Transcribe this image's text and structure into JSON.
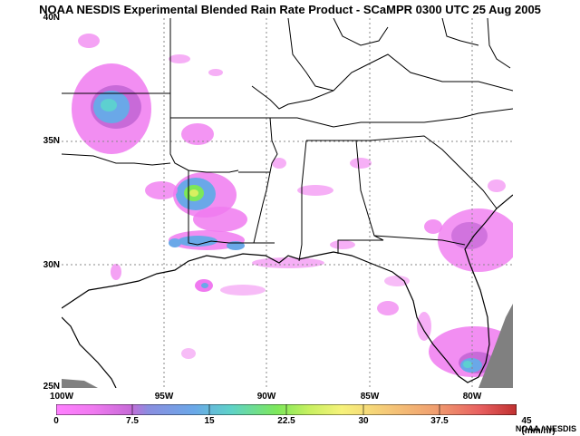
{
  "title": "NOAA NESDIS Experimental Blended Rain Rate Product - SCaMPR 0300 UTC  25 Aug 2005",
  "lat_labels": [
    "40N",
    "35N",
    "30N",
    "25N"
  ],
  "lon_labels": [
    "100W",
    "95W",
    "90W",
    "85W",
    "80W"
  ],
  "colorbar": {
    "labels": [
      "0",
      "7.5",
      "15",
      "22.5",
      "30",
      "37.5",
      "45 (mm/hr)"
    ],
    "min": 0,
    "max": 45,
    "unit": "mm/hr"
  },
  "credit": "NOAA / NESDIS",
  "map_extent": {
    "lon_min": -100,
    "lon_max": -78,
    "lat_min": 25,
    "lat_max": 40
  },
  "colors": {
    "light_rain": "#f07af0",
    "moderate_rain": "#6aa8e8",
    "heavy_rain": "#7de85a",
    "no_data": "#808080"
  }
}
